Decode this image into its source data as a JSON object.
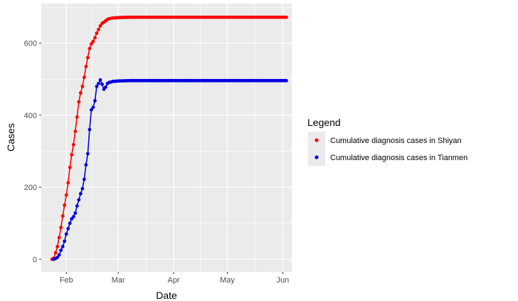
{
  "chart_data": {
    "type": "line",
    "xlabel": "Date",
    "ylabel": "Cases",
    "xlim": [
      "2020-01-18",
      "2020-06-06"
    ],
    "ylim": [
      -35,
      710
    ],
    "x_ticks": [
      {
        "date": "2020-02-01",
        "label": "Feb"
      },
      {
        "date": "2020-03-01",
        "label": "Mar"
      },
      {
        "date": "2020-04-01",
        "label": "Apr"
      },
      {
        "date": "2020-05-01",
        "label": "May"
      },
      {
        "date": "2020-06-01",
        "label": "Jun"
      }
    ],
    "y_ticks": [
      0,
      200,
      400,
      600
    ],
    "grid": true,
    "legend": {
      "title": "Legend",
      "position": "right",
      "entries": [
        "Cumulative diagnosis cases in Shiyan",
        "Cumulative diagnosis cases in Tianmen"
      ]
    },
    "series": [
      {
        "name": "Cumulative diagnosis cases in Shiyan",
        "color": "#ff0000",
        "points": [
          [
            "2020-01-24",
            0
          ],
          [
            "2020-01-25",
            3
          ],
          [
            "2020-01-26",
            18
          ],
          [
            "2020-01-27",
            35
          ],
          [
            "2020-01-28",
            60
          ],
          [
            "2020-01-29",
            88
          ],
          [
            "2020-01-30",
            120
          ],
          [
            "2020-01-31",
            150
          ],
          [
            "2020-02-01",
            178
          ],
          [
            "2020-02-02",
            212
          ],
          [
            "2020-02-03",
            255
          ],
          [
            "2020-02-04",
            290
          ],
          [
            "2020-02-05",
            318
          ],
          [
            "2020-02-06",
            355
          ],
          [
            "2020-02-07",
            395
          ],
          [
            "2020-02-08",
            437
          ],
          [
            "2020-02-09",
            462
          ],
          [
            "2020-02-10",
            480
          ],
          [
            "2020-02-11",
            505
          ],
          [
            "2020-02-12",
            535
          ],
          [
            "2020-02-13",
            560
          ],
          [
            "2020-02-14",
            585
          ],
          [
            "2020-02-15",
            598
          ],
          [
            "2020-02-16",
            605
          ],
          [
            "2020-02-17",
            615
          ],
          [
            "2020-02-18",
            628
          ],
          [
            "2020-02-19",
            638
          ],
          [
            "2020-02-20",
            648
          ],
          [
            "2020-02-21",
            655
          ],
          [
            "2020-02-22",
            658
          ],
          [
            "2020-02-23",
            662
          ],
          [
            "2020-02-24",
            666
          ],
          [
            "2020-02-25",
            668
          ],
          [
            "2020-02-26",
            669
          ],
          [
            "2020-02-27",
            670
          ],
          [
            "2020-02-28",
            670
          ],
          [
            "2020-03-01",
            671
          ],
          [
            "2020-03-08",
            672
          ],
          [
            "2020-03-15",
            672
          ],
          [
            "2020-03-22",
            672
          ],
          [
            "2020-03-29",
            672
          ],
          [
            "2020-04-05",
            672
          ],
          [
            "2020-04-12",
            672
          ],
          [
            "2020-04-19",
            672
          ],
          [
            "2020-04-26",
            672
          ],
          [
            "2020-05-03",
            672
          ],
          [
            "2020-05-10",
            672
          ],
          [
            "2020-05-17",
            672
          ],
          [
            "2020-05-24",
            672
          ],
          [
            "2020-05-31",
            672
          ],
          [
            "2020-06-03",
            672
          ]
        ]
      },
      {
        "name": "Cumulative diagnosis cases in Tianmen",
        "color": "#0000e0",
        "points": [
          [
            "2020-01-25",
            0
          ],
          [
            "2020-01-26",
            2
          ],
          [
            "2020-01-27",
            5
          ],
          [
            "2020-01-28",
            12
          ],
          [
            "2020-01-29",
            25
          ],
          [
            "2020-01-30",
            35
          ],
          [
            "2020-01-31",
            50
          ],
          [
            "2020-02-01",
            70
          ],
          [
            "2020-02-02",
            85
          ],
          [
            "2020-02-03",
            100
          ],
          [
            "2020-02-04",
            112
          ],
          [
            "2020-02-05",
            118
          ],
          [
            "2020-02-06",
            128
          ],
          [
            "2020-02-07",
            148
          ],
          [
            "2020-02-08",
            165
          ],
          [
            "2020-02-09",
            182
          ],
          [
            "2020-02-10",
            196
          ],
          [
            "2020-02-11",
            222
          ],
          [
            "2020-02-12",
            262
          ],
          [
            "2020-02-13",
            293
          ],
          [
            "2020-02-14",
            360
          ],
          [
            "2020-02-15",
            415
          ],
          [
            "2020-02-16",
            422
          ],
          [
            "2020-02-17",
            440
          ],
          [
            "2020-02-18",
            480
          ],
          [
            "2020-02-19",
            488
          ],
          [
            "2020-02-20",
            498
          ],
          [
            "2020-02-21",
            486
          ],
          [
            "2020-02-22",
            472
          ],
          [
            "2020-02-23",
            478
          ],
          [
            "2020-02-24",
            488
          ],
          [
            "2020-02-25",
            491
          ],
          [
            "2020-02-26",
            492
          ],
          [
            "2020-02-27",
            494
          ],
          [
            "2020-02-28",
            494
          ],
          [
            "2020-03-01",
            495
          ],
          [
            "2020-03-08",
            496
          ],
          [
            "2020-03-15",
            496
          ],
          [
            "2020-03-22",
            496
          ],
          [
            "2020-03-29",
            496
          ],
          [
            "2020-04-05",
            496
          ],
          [
            "2020-04-12",
            496
          ],
          [
            "2020-04-19",
            496
          ],
          [
            "2020-04-26",
            496
          ],
          [
            "2020-05-03",
            496
          ],
          [
            "2020-05-10",
            496
          ],
          [
            "2020-05-17",
            496
          ],
          [
            "2020-05-24",
            496
          ],
          [
            "2020-05-31",
            496
          ],
          [
            "2020-06-03",
            496
          ]
        ]
      }
    ]
  }
}
